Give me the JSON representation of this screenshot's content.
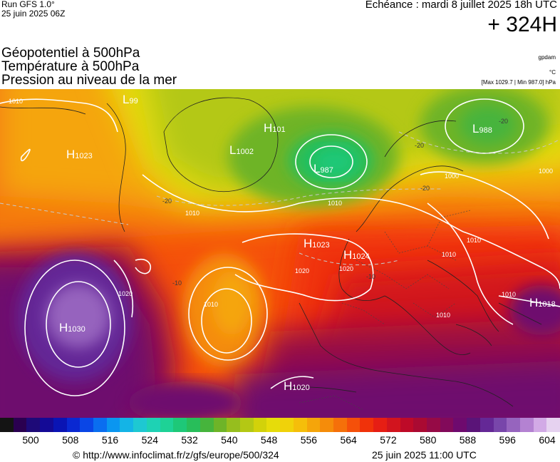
{
  "header": {
    "run": "Run GFS 1.0°",
    "run_date": "25 juin 2025 06Z",
    "echeance": "Echéance : mardi 8 juillet 2025 18h UTC",
    "offset": "+ 324H"
  },
  "params": {
    "line1": "Géopotentiel à 500hPa",
    "line2": "Température à 500hPa",
    "line3": "Pression au niveau de la mer",
    "unit1": "gpdam",
    "unit2": "°C",
    "unit3": "[Max 1029.7 | Min 987.0] hPa"
  },
  "map": {
    "pressure_centers": [
      {
        "type": "H",
        "value": "1023"
      },
      {
        "type": "L",
        "value": "99"
      },
      {
        "type": "H",
        "value": "101"
      },
      {
        "type": "L",
        "value": "1002"
      },
      {
        "type": "L",
        "value": "987"
      },
      {
        "type": "L",
        "value": "988"
      },
      {
        "type": "H",
        "value": "1023"
      },
      {
        "type": "H",
        "value": "1024"
      },
      {
        "type": "H",
        "value": "1030"
      },
      {
        "type": "H",
        "value": "1018"
      },
      {
        "type": "H",
        "value": "1020"
      }
    ],
    "isobar_labels": [
      "1010",
      "1010",
      "1010",
      "1000",
      "1000",
      "1010",
      "1010",
      "1020",
      "1020",
      "1010",
      "1010",
      "1010",
      "1020"
    ],
    "temp_labels": [
      "-20",
      "-20",
      "-20",
      "-20",
      "-10",
      "-10"
    ]
  },
  "colorbar": {
    "colors": [
      "#141414",
      "#2a0050",
      "#1e0a78",
      "#140a96",
      "#0a14b4",
      "#0a28d2",
      "#0a46e6",
      "#0a6ef0",
      "#0a96f0",
      "#14b4e6",
      "#1ec8d2",
      "#1ed2b4",
      "#1ed296",
      "#1ec878",
      "#28be5a",
      "#46b43c",
      "#6eb428",
      "#96be1e",
      "#b4c814",
      "#d2d20a",
      "#e6dc0a",
      "#f0d20a",
      "#f5be0a",
      "#f5a50a",
      "#f58c0a",
      "#f5700a",
      "#f5500a",
      "#f0320a",
      "#e61e14",
      "#d2141e",
      "#be0a28",
      "#aa0a32",
      "#960a46",
      "#820a5a",
      "#6e0a6e",
      "#5a1478",
      "#642896",
      "#7846aa",
      "#9664be",
      "#b482d2",
      "#d2aae6",
      "#e6d2f0"
    ],
    "ticks": [
      "500",
      "508",
      "516",
      "524",
      "532",
      "540",
      "548",
      "556",
      "564",
      "572",
      "580",
      "588",
      "596",
      "604"
    ]
  },
  "footer": {
    "url": "© http://www.infoclimat.fr/z/gfs/europe/500/324",
    "date": "25 juin 2025 11:00 UTC"
  }
}
